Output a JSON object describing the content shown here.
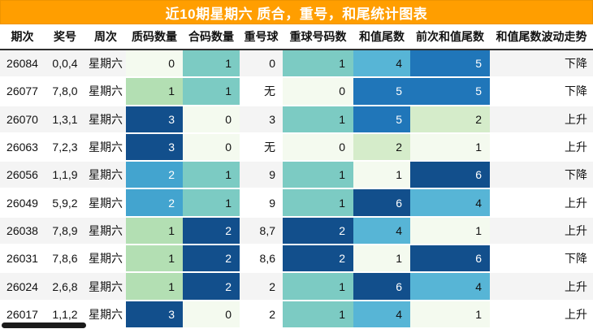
{
  "chart_data": {
    "type": "table",
    "title": "近10期星期六 质合，重号，和尾统计图表",
    "columns": [
      "期次",
      "奖号",
      "周次",
      "质码数量",
      "合码数量",
      "重号球",
      "重球号码数",
      "和值尾数",
      "前次和值尾数",
      "和值尾数波动走势"
    ],
    "rows": [
      {
        "period": "26084",
        "nums": "0,0,4",
        "week": "星期六",
        "prime": {
          "v": "0",
          "c": "p"
        },
        "comp": {
          "v": "1",
          "c": "t"
        },
        "rep": "0",
        "repn": {
          "v": "1",
          "c": "t"
        },
        "tail": {
          "v": "4",
          "c": "bK"
        },
        "prev": {
          "v": "5",
          "c": "B5"
        },
        "trend": "下降"
      },
      {
        "period": "26077",
        "nums": "7,8,0",
        "week": "星期六",
        "prime": {
          "v": "1",
          "c": "gA"
        },
        "comp": {
          "v": "1",
          "c": "t"
        },
        "rep": "无",
        "repn": {
          "v": "0",
          "c": "p"
        },
        "tail": {
          "v": "5",
          "c": "B5"
        },
        "prev": {
          "v": "5",
          "c": "B5"
        },
        "trend": "下降"
      },
      {
        "period": "26070",
        "nums": "1,3,1",
        "week": "星期六",
        "prime": {
          "v": "3",
          "c": "N"
        },
        "comp": {
          "v": "0",
          "c": "p"
        },
        "rep": "3",
        "repn": {
          "v": "1",
          "c": "t"
        },
        "tail": {
          "v": "5",
          "c": "B5"
        },
        "prev": {
          "v": "2",
          "c": "gB"
        },
        "trend": "上升"
      },
      {
        "period": "26063",
        "nums": "7,2,3",
        "week": "星期六",
        "prime": {
          "v": "3",
          "c": "N"
        },
        "comp": {
          "v": "0",
          "c": "p"
        },
        "rep": "无",
        "repn": {
          "v": "0",
          "c": "p"
        },
        "tail": {
          "v": "2",
          "c": "gB"
        },
        "prev": {
          "v": "1",
          "c": "p"
        },
        "trend": "上升"
      },
      {
        "period": "26056",
        "nums": "1,1,9",
        "week": "星期六",
        "prime": {
          "v": "2",
          "c": "bW"
        },
        "comp": {
          "v": "1",
          "c": "t"
        },
        "rep": "9",
        "repn": {
          "v": "1",
          "c": "t"
        },
        "tail": {
          "v": "1",
          "c": "p"
        },
        "prev": {
          "v": "6",
          "c": "N"
        },
        "trend": "下降"
      },
      {
        "period": "26049",
        "nums": "5,9,2",
        "week": "星期六",
        "prime": {
          "v": "2",
          "c": "bW"
        },
        "comp": {
          "v": "1",
          "c": "t"
        },
        "rep": "9",
        "repn": {
          "v": "1",
          "c": "t"
        },
        "tail": {
          "v": "6",
          "c": "N"
        },
        "prev": {
          "v": "4",
          "c": "bK"
        },
        "trend": "上升"
      },
      {
        "period": "26038",
        "nums": "7,8,9",
        "week": "星期六",
        "prime": {
          "v": "1",
          "c": "gA"
        },
        "comp": {
          "v": "2",
          "c": "N"
        },
        "rep": "8,7",
        "repn": {
          "v": "2",
          "c": "N"
        },
        "tail": {
          "v": "4",
          "c": "bK"
        },
        "prev": {
          "v": "1",
          "c": "p"
        },
        "trend": "上升"
      },
      {
        "period": "26031",
        "nums": "7,8,6",
        "week": "星期六",
        "prime": {
          "v": "1",
          "c": "gA"
        },
        "comp": {
          "v": "2",
          "c": "N"
        },
        "rep": "8,6",
        "repn": {
          "v": "2",
          "c": "N"
        },
        "tail": {
          "v": "1",
          "c": "p"
        },
        "prev": {
          "v": "6",
          "c": "N"
        },
        "trend": "下降"
      },
      {
        "period": "26024",
        "nums": "2,6,8",
        "week": "星期六",
        "prime": {
          "v": "1",
          "c": "gA"
        },
        "comp": {
          "v": "2",
          "c": "N"
        },
        "rep": "2",
        "repn": {
          "v": "1",
          "c": "t"
        },
        "tail": {
          "v": "6",
          "c": "N"
        },
        "prev": {
          "v": "4",
          "c": "bK"
        },
        "trend": "上升"
      },
      {
        "period": "26017",
        "nums": "1,1,2",
        "week": "星期六",
        "prime": {
          "v": "3",
          "c": "N"
        },
        "comp": {
          "v": "0",
          "c": "p"
        },
        "rep": "2",
        "repn": {
          "v": "1",
          "c": "t"
        },
        "tail": {
          "v": "4",
          "c": "bK"
        },
        "prev": {
          "v": "1",
          "c": "p"
        },
        "trend": "上升"
      }
    ],
    "heat_palette": {
      "p": {
        "bg": "#F4FAEF",
        "fg": "#111111"
      },
      "gA": {
        "bg": "#B3DFB3",
        "fg": "#111111"
      },
      "gB": {
        "bg": "#D5ECCA",
        "fg": "#111111"
      },
      "t": {
        "bg": "#7CCBC3",
        "fg": "#111111"
      },
      "bW": {
        "bg": "#43A4CF",
        "fg": "#FFFFFF"
      },
      "bK": {
        "bg": "#57B5D6",
        "fg": "#111111"
      },
      "B5": {
        "bg": "#2076B9",
        "fg": "#FFFFFF"
      },
      "N": {
        "bg": "#124F8C",
        "fg": "#FFFFFF"
      }
    },
    "layout": {
      "title_bg": "#FF9E00",
      "title_fg": "#FFFFFF",
      "alt_row_bg": "#F4F4F4",
      "trend_values": [
        "上升",
        "下降"
      ]
    }
  }
}
